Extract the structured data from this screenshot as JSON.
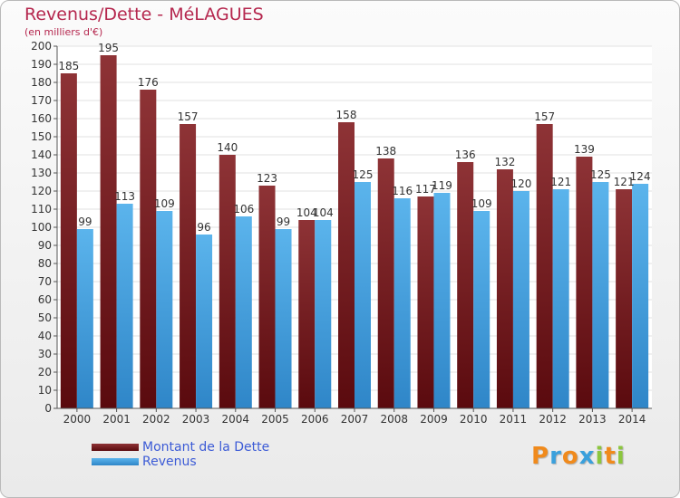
{
  "header": {
    "title": "Revenus/Dette - MéLAGUES",
    "subtitle": "(en milliers d'€)"
  },
  "chart_data": {
    "type": "bar",
    "categories": [
      "2000",
      "2001",
      "2002",
      "2003",
      "2004",
      "2005",
      "2006",
      "2007",
      "2008",
      "2009",
      "2010",
      "2011",
      "2012",
      "2013",
      "2014"
    ],
    "series": [
      {
        "name": "Montant de la Dette",
        "values": [
          185,
          195,
          176,
          157,
          140,
          123,
          104,
          158,
          138,
          117,
          136,
          132,
          157,
          139,
          121
        ],
        "color": "#7a1c22"
      },
      {
        "name": "Revenus",
        "values": [
          99,
          113,
          109,
          96,
          106,
          99,
          104,
          125,
          116,
          119,
          109,
          120,
          121,
          125,
          124
        ],
        "color": "#4aa3e0"
      }
    ],
    "ylim": [
      0,
      200
    ],
    "ytick_step": 10,
    "grid": true,
    "legend_position": "bottom-left"
  },
  "legend": {
    "items": [
      {
        "label": "Montant de la Dette",
        "color": "#7a1c22"
      },
      {
        "label": "Revenus",
        "color": "#4aa3e0"
      }
    ]
  },
  "logo": {
    "letters": [
      {
        "char": "P",
        "color": "#f08a1c"
      },
      {
        "char": "r",
        "color": "#3aa0dc"
      },
      {
        "char": "o",
        "color": "#f08a1c"
      },
      {
        "char": "x",
        "color": "#3aa0dc"
      },
      {
        "char": "i",
        "color": "#8cc63e"
      },
      {
        "char": "t",
        "color": "#f08a1c"
      },
      {
        "char": "i",
        "color": "#8cc63e"
      }
    ]
  }
}
